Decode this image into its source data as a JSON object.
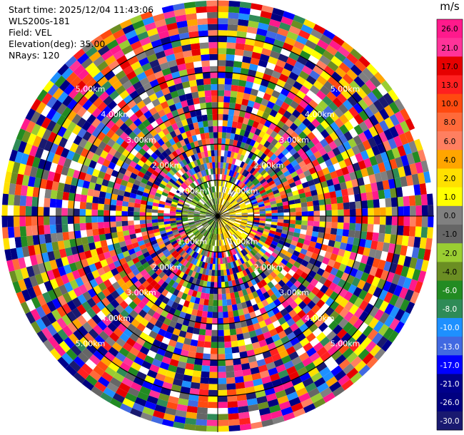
{
  "header": {
    "start_time": "Start time: 2025/12/04 11:43:06",
    "site": "WLS200s-181",
    "field": "Field: VEL",
    "elevation": "Elevation(deg): 35.00",
    "nrays": "NRays: 120"
  },
  "chart_data": {
    "type": "polar-ppi",
    "nrays": 120,
    "max_range_km": 6.0,
    "ring_labels": [
      "1.00km",
      "2.00km",
      "3.00km",
      "4.00km",
      "5.00km"
    ],
    "colorbar": {
      "unit": "m/s",
      "levels": [
        "26.0",
        "21.0",
        "17.0",
        "13.0",
        "10.0",
        "8.0",
        "6.0",
        "4.0",
        "2.0",
        "1.0",
        "0.0",
        "-1.0",
        "-2.0",
        "-4.0",
        "-6.0",
        "-8.0",
        "-10.0",
        "-13.0",
        "-17.0",
        "-21.0",
        "-26.0",
        "-30.0"
      ],
      "colors": [
        "#ff1a8c",
        "#ff3399",
        "#e60000",
        "#ff2020",
        "#ff4a10",
        "#ff6a3a",
        "#ff7f60",
        "#ffa500",
        "#ffe000",
        "#ffff00",
        "#808080",
        "#666666",
        "#9acd32",
        "#6b8e23",
        "#228b22",
        "#2e8b57",
        "#1e90ff",
        "#4169e1",
        "#0000ff",
        "#00008b",
        "#000080",
        "#191970"
      ]
    }
  }
}
